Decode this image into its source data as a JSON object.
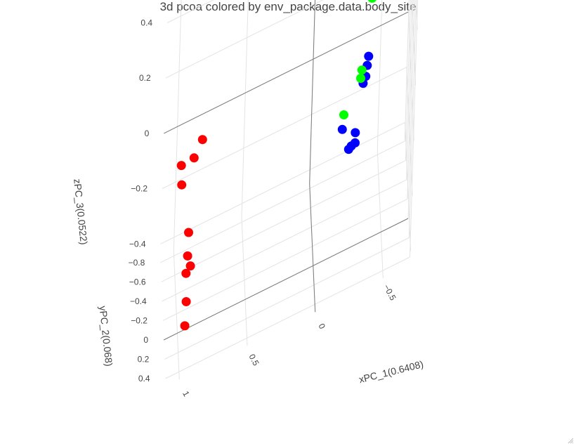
{
  "chart_data": {
    "type": "scatter",
    "title": "3d pcoa colored by env_package.data.body_site",
    "axes": {
      "x": {
        "label": "xPC_1(0.6408)",
        "ticks": [
          "1",
          "0.5",
          "0",
          "−0.5"
        ]
      },
      "y": {
        "label": "yPC_2(0.068)",
        "ticks": [
          "−0.8",
          "−0.6",
          "−0.4",
          "−0.2",
          "0",
          "0.2",
          "0.4"
        ]
      },
      "z": {
        "label": "zPC_3(0.0522)",
        "ticks": [
          "−0.4",
          "−0.2",
          "0",
          "0.2",
          "0.4"
        ]
      }
    },
    "grid": true,
    "legend": "none",
    "series": [
      {
        "color": "#ff0000",
        "points": [
          {
            "x": 0.84,
            "y": -0.29,
            "z": 0.11
          },
          {
            "x": 0.89,
            "y": -0.45,
            "z": 0.0
          },
          {
            "x": 0.98,
            "y": -0.52,
            "z": -0.03
          },
          {
            "x": 0.97,
            "y": -0.57,
            "z": -0.12
          },
          {
            "x": 0.94,
            "y": 0.03,
            "z": -0.09
          },
          {
            "x": 0.95,
            "y": 0.18,
            "z": -0.12
          },
          {
            "x": 0.96,
            "y": 0.21,
            "z": -0.17
          },
          {
            "x": 0.93,
            "y": 0.24,
            "z": -0.14
          },
          {
            "x": 0.96,
            "y": 0.36,
            "z": -0.22
          },
          {
            "x": 0.97,
            "y": 0.46,
            "z": -0.27
          }
        ]
      },
      {
        "color": "#00ff00",
        "points": [
          {
            "x": -0.33,
            "y": -0.64,
            "z": 0.34
          },
          {
            "x": -0.36,
            "y": -0.69,
            "z": 0.28
          },
          {
            "x": -0.38,
            "y": -0.71,
            "z": 0.27
          },
          {
            "x": -0.35,
            "y": -0.67,
            "z": 0.25
          },
          {
            "x": -0.37,
            "y": -0.7,
            "z": 0.24
          },
          {
            "x": -0.42,
            "y": -0.73,
            "z": 0.16
          },
          {
            "x": -0.35,
            "y": -0.55,
            "z": -0.02
          },
          {
            "x": -0.34,
            "y": -0.5,
            "z": -0.03
          },
          {
            "x": -0.21,
            "y": -0.27,
            "z": -0.05
          }
        ]
      },
      {
        "color": "#0000ff",
        "points": [
          {
            "x": -0.4,
            "y": -0.6,
            "z": 0.0
          },
          {
            "x": -0.39,
            "y": -0.57,
            "z": -0.02
          },
          {
            "x": -0.38,
            "y": -0.55,
            "z": -0.05
          },
          {
            "x": -0.36,
            "y": -0.52,
            "z": -0.06
          },
          {
            "x": -0.2,
            "y": -0.24,
            "z": -0.09
          },
          {
            "x": -0.3,
            "y": -0.28,
            "z": -0.14
          },
          {
            "x": -0.27,
            "y": -0.22,
            "z": -0.16
          },
          {
            "x": -0.25,
            "y": -0.2,
            "z": -0.16
          },
          {
            "x": -0.3,
            "y": -0.26,
            "z": -0.17
          }
        ]
      }
    ]
  }
}
